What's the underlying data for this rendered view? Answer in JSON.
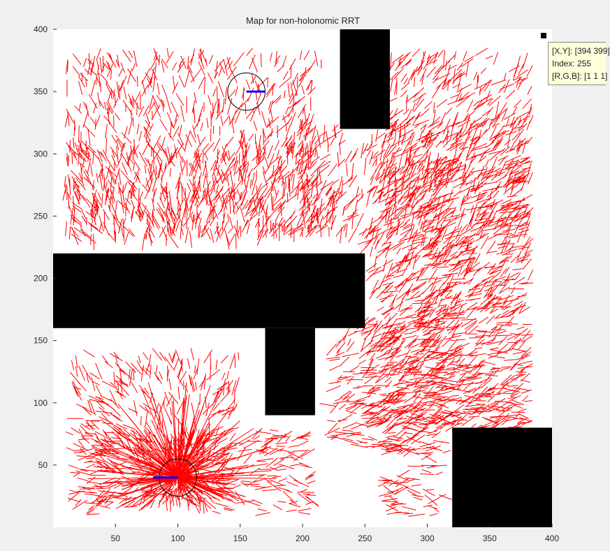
{
  "figure": {
    "title": "Map for non-holonomic RRT"
  },
  "axes": {
    "xlim": [
      0,
      400
    ],
    "ylim": [
      0,
      400
    ],
    "xticks": [
      "50",
      "100",
      "150",
      "200",
      "250",
      "300",
      "350",
      "400"
    ],
    "yticks": [
      "50",
      "100",
      "150",
      "200",
      "250",
      "300",
      "350",
      "400"
    ],
    "background": "#ffffff",
    "grid": false
  },
  "obstacles": [
    {
      "name": "top-pillar",
      "x": [
        230,
        270
      ],
      "y": [
        320,
        400
      ]
    },
    {
      "name": "t-bar",
      "x": [
        0,
        250
      ],
      "y": [
        160,
        220
      ]
    },
    {
      "name": "t-stem",
      "x": [
        170,
        210
      ],
      "y": [
        90,
        160
      ]
    },
    {
      "name": "bottom-right-block",
      "x": [
        320,
        400
      ],
      "y": [
        0,
        80
      ]
    }
  ],
  "tree": {
    "color": "#ff0000",
    "root": [
      100,
      40
    ],
    "regions": [
      {
        "x": [
          10,
          150
        ],
        "y": [
          15,
          145
        ]
      },
      {
        "x": [
          15,
          215
        ],
        "y": [
          10,
          80
        ]
      },
      {
        "x": [
          10,
          215
        ],
        "y": [
          235,
          385
        ]
      },
      {
        "x": [
          10,
          230
        ],
        "y": [
          240,
          310
        ]
      },
      {
        "x": [
          200,
          385
        ],
        "y": [
          240,
          330
        ]
      },
      {
        "x": [
          270,
          385
        ],
        "y": [
          10,
          385
        ]
      },
      {
        "x": [
          255,
          385
        ],
        "y": [
          80,
          300
        ]
      },
      {
        "x": [
          225,
          330
        ],
        "y": [
          60,
          170
        ]
      }
    ]
  },
  "start": {
    "x": 100,
    "y": 40,
    "radius": 15,
    "heading_color": "#0000ff"
  },
  "goal": {
    "x": 155,
    "y": 350,
    "radius": 15,
    "heading_color": "#0000ff"
  },
  "datatip": {
    "xy": "[X,Y]: [394 399]",
    "index": "Index: 255",
    "rgb": "[R,G,B]: [1 1 1]"
  }
}
